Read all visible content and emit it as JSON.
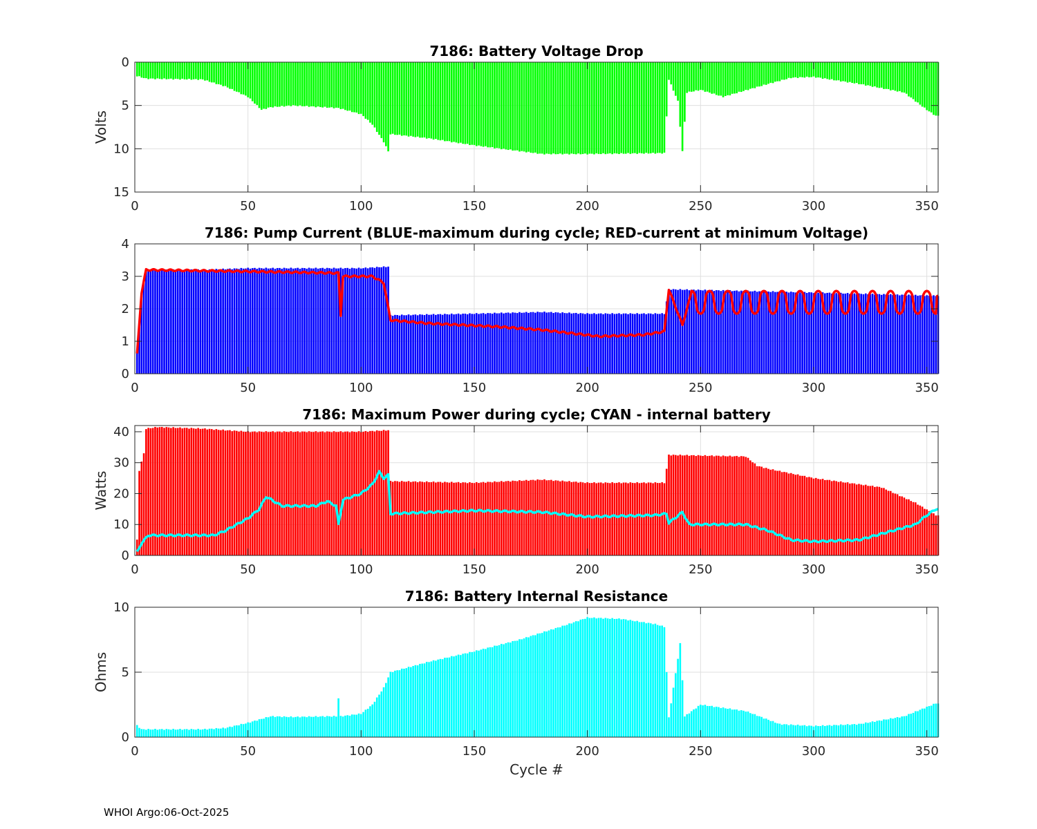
{
  "chart_data": [
    {
      "type": "bar",
      "title": "7186: Battery Voltage Drop",
      "xlabel": "",
      "ylabel": "Volts",
      "xlim": [
        0,
        355
      ],
      "ylim": [
        0,
        15
      ],
      "y_reversed": true,
      "xticks": [
        0,
        50,
        100,
        150,
        200,
        250,
        300,
        350
      ],
      "yticks": [
        0,
        5,
        10,
        15
      ],
      "grid": true,
      "series": [
        {
          "name": "voltage drop",
          "color": "#00ff00",
          "cycle_range": [
            1,
            355
          ],
          "bar_value_keyframes": [
            [
              1,
              1.6
            ],
            [
              5,
              1.9
            ],
            [
              30,
              2.0
            ],
            [
              40,
              2.8
            ],
            [
              50,
              4.0
            ],
            [
              56,
              5.5
            ],
            [
              60,
              5.2
            ],
            [
              70,
              5.0
            ],
            [
              90,
              5.3
            ],
            [
              100,
              6.0
            ],
            [
              105,
              7.2
            ],
            [
              110,
              9.2
            ],
            [
              112,
              10.3
            ],
            [
              113,
              8.3
            ],
            [
              130,
              8.8
            ],
            [
              150,
              9.6
            ],
            [
              180,
              10.6
            ],
            [
              200,
              10.6
            ],
            [
              234,
              10.5
            ],
            [
              236,
              2.0
            ],
            [
              240,
              4.5
            ],
            [
              242,
              10.3
            ],
            [
              244,
              3.5
            ],
            [
              250,
              3.2
            ],
            [
              260,
              4.0
            ],
            [
              280,
              2.5
            ],
            [
              290,
              1.8
            ],
            [
              300,
              1.7
            ],
            [
              320,
              2.5
            ],
            [
              340,
              3.5
            ],
            [
              350,
              5.5
            ],
            [
              354,
              6.2
            ]
          ]
        }
      ]
    },
    {
      "type": "bar",
      "title": "7186: Pump Current (BLUE-maximum during cycle; RED-current at minimum Voltage)",
      "xlabel": "",
      "ylabel": "",
      "xlim": [
        0,
        355
      ],
      "ylim": [
        0,
        4
      ],
      "xticks": [
        0,
        50,
        100,
        150,
        200,
        250,
        300,
        350
      ],
      "yticks": [
        0,
        1,
        2,
        3,
        4
      ],
      "grid": true,
      "series": [
        {
          "name": "BLUE-maximum during cycle",
          "color": "#0000ff",
          "cycle_range": [
            1,
            355
          ],
          "bar_value_keyframes": [
            [
              1,
              0.7
            ],
            [
              3,
              2.4
            ],
            [
              5,
              3.2
            ],
            [
              30,
              3.2
            ],
            [
              50,
              3.25
            ],
            [
              100,
              3.25
            ],
            [
              112,
              3.3
            ],
            [
              113,
              1.8
            ],
            [
              150,
              1.85
            ],
            [
              180,
              1.9
            ],
            [
              200,
              1.85
            ],
            [
              234,
              1.85
            ],
            [
              236,
              2.6
            ],
            [
              300,
              2.5
            ],
            [
              354,
              2.4
            ]
          ]
        },
        {
          "name": "RED-current at minimum Voltage",
          "color": "#ff0000",
          "kind": "line",
          "cycle_range": [
            1,
            355
          ],
          "line_keyframes": [
            [
              1,
              0.6
            ],
            [
              3,
              2.5
            ],
            [
              5,
              3.2
            ],
            [
              50,
              3.15
            ],
            [
              90,
              3.1
            ],
            [
              91,
              1.8
            ],
            [
              92,
              3.0
            ],
            [
              105,
              3.0
            ],
            [
              110,
              2.8
            ],
            [
              113,
              1.65
            ],
            [
              130,
              1.55
            ],
            [
              160,
              1.45
            ],
            [
              180,
              1.35
            ],
            [
              205,
              1.15
            ],
            [
              225,
              1.2
            ],
            [
              234,
              1.3
            ],
            [
              236,
              2.6
            ],
            [
              242,
              1.5
            ],
            [
              246,
              2.5
            ],
            [
              354,
              2.4
            ]
          ],
          "oscillation": {
            "from_cycle": 246,
            "to_cycle": 354,
            "low": 1.85,
            "high": 2.55,
            "period_cycles": 8
          }
        }
      ]
    },
    {
      "type": "bar",
      "title": "7186: Maximum Power during cycle; CYAN - internal battery",
      "xlabel": "",
      "ylabel": "Watts",
      "xlim": [
        0,
        355
      ],
      "ylim": [
        0,
        42
      ],
      "xticks": [
        0,
        50,
        100,
        150,
        200,
        250,
        300,
        350
      ],
      "yticks": [
        0,
        10,
        20,
        30,
        40
      ],
      "grid": true,
      "series": [
        {
          "name": "Maximum Power",
          "color": "#ff0000",
          "cycle_range": [
            1,
            355
          ],
          "bar_value_keyframes": [
            [
              1,
              5
            ],
            [
              2,
              27.5
            ],
            [
              4,
              33
            ],
            [
              5,
              41
            ],
            [
              10,
              41.5
            ],
            [
              30,
              41
            ],
            [
              50,
              40
            ],
            [
              100,
              40
            ],
            [
              112,
              40.5
            ],
            [
              113,
              24
            ],
            [
              150,
              23.5
            ],
            [
              180,
              24.5
            ],
            [
              200,
              23.5
            ],
            [
              234,
              23.5
            ],
            [
              236,
              32.5
            ],
            [
              270,
              32
            ],
            [
              275,
              29
            ],
            [
              280,
              28
            ],
            [
              300,
              25
            ],
            [
              330,
              22
            ],
            [
              345,
              17
            ],
            [
              354,
              13
            ]
          ]
        },
        {
          "name": "CYAN - internal battery",
          "color": "#00ffff",
          "kind": "line",
          "cycle_range": [
            1,
            355
          ],
          "line_keyframes": [
            [
              1,
              1
            ],
            [
              3,
              4
            ],
            [
              6,
              6.5
            ],
            [
              35,
              6.5
            ],
            [
              40,
              8
            ],
            [
              50,
              12
            ],
            [
              55,
              15
            ],
            [
              58,
              19
            ],
            [
              65,
              16
            ],
            [
              80,
              16
            ],
            [
              85,
              17.5
            ],
            [
              89,
              16
            ],
            [
              90,
              10
            ],
            [
              92,
              18
            ],
            [
              100,
              20
            ],
            [
              105,
              23
            ],
            [
              108,
              27
            ],
            [
              110,
              25
            ],
            [
              112,
              26
            ],
            [
              113,
              13.5
            ],
            [
              150,
              14.5
            ],
            [
              180,
              14
            ],
            [
              200,
              12.5
            ],
            [
              230,
              13
            ],
            [
              235,
              13.5
            ],
            [
              236,
              10.5
            ],
            [
              242,
              14
            ],
            [
              245,
              10
            ],
            [
              270,
              10
            ],
            [
              280,
              8
            ],
            [
              290,
              5
            ],
            [
              300,
              4.5
            ],
            [
              320,
              5
            ],
            [
              335,
              8
            ],
            [
              345,
              10
            ],
            [
              350,
              13
            ],
            [
              354,
              15
            ]
          ]
        }
      ]
    },
    {
      "type": "bar",
      "title": "7186: Battery Internal Resistance",
      "xlabel": "Cycle #",
      "ylabel": "Ohms",
      "xlim": [
        0,
        355
      ],
      "ylim": [
        0,
        10
      ],
      "xticks": [
        0,
        50,
        100,
        150,
        200,
        250,
        300,
        350
      ],
      "yticks": [
        0,
        5,
        10
      ],
      "grid": true,
      "series": [
        {
          "name": "internal resistance",
          "color": "#00ffff",
          "cycle_range": [
            1,
            355
          ],
          "bar_value_keyframes": [
            [
              1,
              0.9
            ],
            [
              3,
              0.6
            ],
            [
              30,
              0.6
            ],
            [
              40,
              0.7
            ],
            [
              50,
              1.1
            ],
            [
              60,
              1.6
            ],
            [
              70,
              1.55
            ],
            [
              85,
              1.6
            ],
            [
              89,
              1.6
            ],
            [
              90,
              3.0
            ],
            [
              91,
              1.6
            ],
            [
              100,
              1.8
            ],
            [
              105,
              2.5
            ],
            [
              110,
              3.8
            ],
            [
              113,
              5.0
            ],
            [
              130,
              5.8
            ],
            [
              150,
              6.6
            ],
            [
              170,
              7.5
            ],
            [
              190,
              8.6
            ],
            [
              200,
              9.2
            ],
            [
              215,
              9.1
            ],
            [
              230,
              8.7
            ],
            [
              234,
              8.5
            ],
            [
              236,
              1.5
            ],
            [
              241,
              7.2
            ],
            [
              243,
              1.6
            ],
            [
              250,
              2.5
            ],
            [
              270,
              2.0
            ],
            [
              285,
              1.0
            ],
            [
              300,
              0.85
            ],
            [
              320,
              1.0
            ],
            [
              340,
              1.6
            ],
            [
              354,
              2.6
            ]
          ]
        }
      ]
    }
  ],
  "footer": {
    "text": "WHOI Argo:06-Oct-2025"
  },
  "colors": {
    "axis": "#262626",
    "grid": "#dfdfdf",
    "background": "#ffffff"
  }
}
